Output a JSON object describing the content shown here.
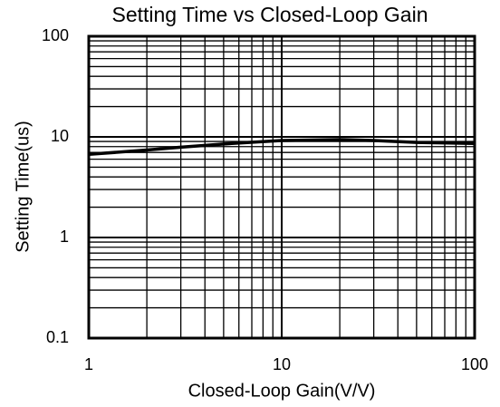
{
  "chart_data": {
    "type": "line",
    "title": "Setting Time vs Closed-Loop Gain",
    "x_label": "Closed-Loop Gain(V/V)",
    "y_label": "Setting Time(us)",
    "x": [
      1,
      2,
      3,
      5,
      10,
      20,
      30,
      50,
      100
    ],
    "series": [
      {
        "name": "Setting Time",
        "color": "#000000",
        "values": [
          6.7,
          7.4,
          7.9,
          8.5,
          9.2,
          9.4,
          9.2,
          8.8,
          8.6
        ]
      }
    ],
    "xlim": [
      1,
      100
    ],
    "xticks": [
      1,
      10,
      100
    ],
    "ylim": [
      0.1,
      100
    ],
    "yticks": [
      0.1,
      1,
      10,
      100
    ],
    "xscale": "log",
    "yscale": "log",
    "grid": true
  }
}
